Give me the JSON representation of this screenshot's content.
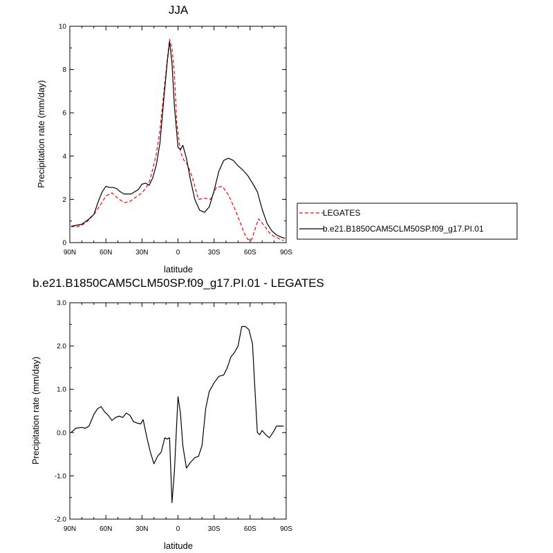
{
  "chart_data": [
    {
      "type": "line",
      "title": "JJA",
      "xlabel": "latitude",
      "ylabel": "Precipitation rate (mm/day)",
      "xlim": [
        -90,
        90
      ],
      "ylim": [
        0,
        10
      ],
      "x_tick_labels": [
        "90N",
        "60N",
        "30N",
        "0",
        "30S",
        "60S",
        "90S"
      ],
      "y_tick_labels": [
        "0",
        "2",
        "4",
        "6",
        "8",
        "10"
      ],
      "legend": {
        "placement": "right, outside plot"
      },
      "series": [
        {
          "name": "LEGATES",
          "color": "#ff0000",
          "style": "dashed",
          "x": [
            -89,
            -85,
            -80,
            -75,
            -70,
            -65,
            -60,
            -55,
            -50,
            -45,
            -40,
            -35,
            -30,
            -27,
            -24,
            -21,
            -18,
            -15,
            -12,
            -9,
            -7,
            -5,
            -3,
            -1,
            2,
            5,
            8,
            12,
            17,
            22,
            27,
            32,
            37,
            42,
            47,
            52,
            55,
            58,
            61,
            64,
            67,
            70,
            73,
            76,
            79,
            82,
            85,
            88
          ],
          "values": [
            0.75,
            0.72,
            0.8,
            1.0,
            1.3,
            1.7,
            2.15,
            2.3,
            2.05,
            1.85,
            1.9,
            2.1,
            2.3,
            2.5,
            2.8,
            3.4,
            4.1,
            5.2,
            6.8,
            8.4,
            9.4,
            9.0,
            7.8,
            5.5,
            4.2,
            3.8,
            3.6,
            3.0,
            2.0,
            2.05,
            2.0,
            2.55,
            2.6,
            2.2,
            1.6,
            0.9,
            0.45,
            0.15,
            0.1,
            0.6,
            1.1,
            0.9,
            0.7,
            0.45,
            0.32,
            0.25,
            0.15,
            0.1
          ]
        },
        {
          "name": "b.e21.B1850CAM5CLM50SP.f09_g17.PI.01",
          "color": "#000000",
          "style": "solid",
          "x": [
            -89,
            -85,
            -80,
            -75,
            -70,
            -66,
            -63,
            -60,
            -57,
            -54,
            -51,
            -48,
            -45,
            -42,
            -39,
            -36,
            -33,
            -30,
            -27,
            -24,
            -21,
            -18,
            -15,
            -12,
            -9,
            -7,
            -5,
            -3,
            0,
            2,
            4,
            7,
            10,
            14,
            18,
            22,
            26,
            30,
            34,
            38,
            42,
            46,
            50,
            54,
            58,
            62,
            66,
            70,
            74,
            78,
            82,
            86,
            89
          ],
          "values": [
            0.75,
            0.8,
            0.85,
            1.05,
            1.3,
            1.95,
            2.35,
            2.6,
            2.55,
            2.55,
            2.5,
            2.35,
            2.25,
            2.25,
            2.25,
            2.35,
            2.45,
            2.7,
            2.75,
            2.65,
            3.0,
            3.6,
            4.6,
            6.5,
            8.3,
            9.3,
            8.3,
            6.3,
            4.4,
            4.3,
            4.5,
            3.9,
            3.0,
            2.0,
            1.5,
            1.4,
            1.65,
            2.4,
            3.3,
            3.8,
            3.9,
            3.8,
            3.55,
            3.35,
            3.1,
            2.75,
            2.35,
            1.55,
            0.9,
            0.55,
            0.35,
            0.25,
            0.2
          ]
        }
      ]
    },
    {
      "type": "line",
      "title": "b.e21.B1850CAM5CLM50SP.f09_g17.PI.01 - LEGATES",
      "xlabel": "latitude",
      "ylabel": "Precipitation rate (mm/day)",
      "xlim": [
        -90,
        90
      ],
      "ylim": [
        -2,
        3
      ],
      "x_tick_labels": [
        "90N",
        "60N",
        "30N",
        "0",
        "30S",
        "60S",
        "90S"
      ],
      "y_tick_labels": [
        "-2.0",
        "-1.0",
        "0.0",
        "1.0",
        "2.0",
        "3.0"
      ],
      "series": [
        {
          "color": "#000000",
          "style": "solid",
          "x": [
            -89,
            -85,
            -80,
            -77,
            -74,
            -70,
            -67,
            -64,
            -61,
            -58,
            -55,
            -52,
            -49,
            -46,
            -43,
            -40,
            -37,
            -34,
            -31,
            -29,
            -26,
            -23,
            -20,
            -17,
            -14,
            -11,
            -9,
            -7,
            -5,
            -3,
            0,
            2,
            4,
            7,
            10,
            14,
            17,
            20,
            23,
            26,
            30,
            34,
            38,
            41,
            44,
            47,
            50,
            53,
            56,
            59,
            62,
            64,
            66,
            68,
            70,
            73,
            76,
            79,
            82,
            85,
            88
          ],
          "values": [
            0.0,
            0.1,
            0.12,
            0.1,
            0.15,
            0.42,
            0.55,
            0.6,
            0.48,
            0.4,
            0.28,
            0.35,
            0.38,
            0.35,
            0.45,
            0.4,
            0.25,
            0.22,
            0.2,
            0.3,
            -0.1,
            -0.45,
            -0.72,
            -0.55,
            -0.45,
            -0.12,
            -0.15,
            -0.12,
            -1.62,
            -0.9,
            0.83,
            0.45,
            -0.3,
            -0.82,
            -0.7,
            -0.58,
            -0.55,
            -0.3,
            0.55,
            0.95,
            1.15,
            1.3,
            1.33,
            1.5,
            1.75,
            1.85,
            2.0,
            2.45,
            2.45,
            2.38,
            2.05,
            1.0,
            0.0,
            -0.05,
            0.05,
            -0.05,
            -0.12,
            0.0,
            0.15,
            0.15,
            0.15
          ]
        }
      ]
    }
  ]
}
